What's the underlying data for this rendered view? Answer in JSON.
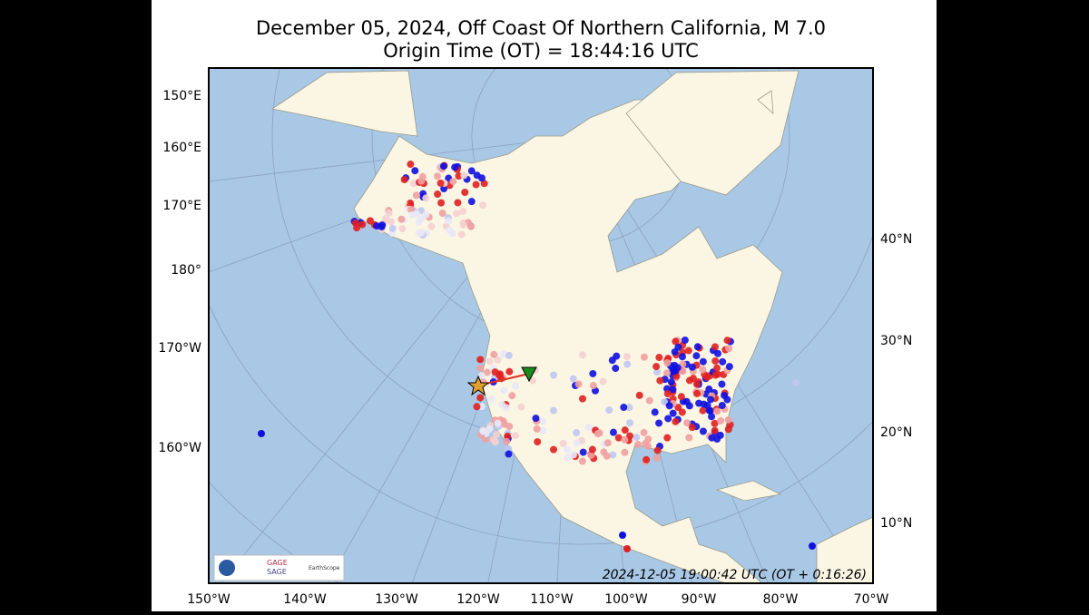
{
  "header": {
    "title": "December 05, 2024, Off Coast Of Northern California, M 7.0",
    "subtitle": "Origin Time (OT) = 18:44:16 UTC"
  },
  "map": {
    "left_labels": [
      "150°E",
      "160°E",
      "170°E",
      "180°",
      "170°W",
      "160°W"
    ],
    "right_labels": [
      "40°N",
      "30°N",
      "20°N",
      "10°N"
    ],
    "bottom_labels": [
      "150°W",
      "140°W",
      "130°W",
      "120°W",
      "110°W",
      "100°W",
      "90°W",
      "80°W",
      "70°W"
    ],
    "timestamp": "2024-12-05 19:00:42 UTC (OT + 0:16:26)",
    "logos": [
      "GAGE",
      "SAGE",
      "EarthScope"
    ]
  }
}
